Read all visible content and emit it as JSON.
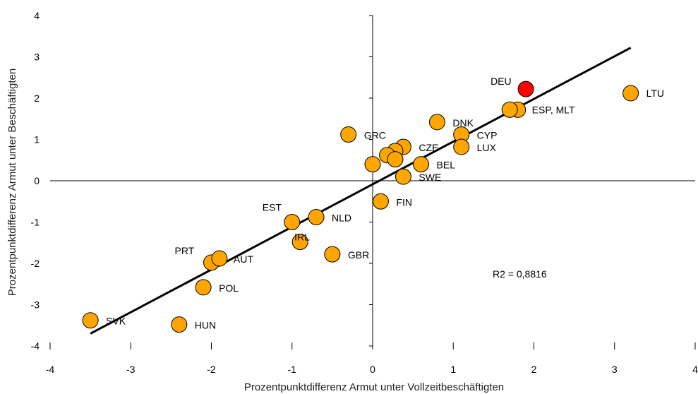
{
  "chart_data": {
    "type": "scatter",
    "xlabel": "Prozentpunktdifferenz Armut unter Vollzeitbeschäftigten",
    "ylabel": "Prozentpunktdifferenz Armut unter Beschäftigten",
    "xlim": [
      -4,
      4
    ],
    "ylim": [
      -4,
      4
    ],
    "xticks": [
      "-4",
      "-3",
      "-2",
      "-1",
      "0",
      "1",
      "2",
      "3",
      "4"
    ],
    "yticks": [
      "4",
      "3",
      "2",
      "1",
      "0",
      "-1",
      "-2",
      "-3",
      "-4"
    ],
    "grid": false,
    "point_color": "#FFA500",
    "highlight_color": "#FF0000",
    "trend_color": "#000000",
    "points": [
      {
        "label": "DEU",
        "x": 1.9,
        "y": 2.22,
        "highlight": true
      },
      {
        "label": "LTU",
        "x": 3.2,
        "y": 2.12
      },
      {
        "label": "ESP, MLT",
        "x": 1.8,
        "y": 1.72
      },
      {
        "label": "",
        "x": 1.7,
        "y": 1.72
      },
      {
        "label": "DNK",
        "x": 0.8,
        "y": 1.42
      },
      {
        "label": "CYP",
        "x": 1.1,
        "y": 1.12
      },
      {
        "label": "LUX",
        "x": 1.1,
        "y": 0.82
      },
      {
        "label": "GRC",
        "x": -0.3,
        "y": 1.12
      },
      {
        "label": "CZE",
        "x": 0.38,
        "y": 0.82
      },
      {
        "label": "",
        "x": 0.28,
        "y": 0.72
      },
      {
        "label": "",
        "x": 0.18,
        "y": 0.62
      },
      {
        "label": "",
        "x": 0.28,
        "y": 0.52
      },
      {
        "label": "",
        "x": 0.0,
        "y": 0.4
      },
      {
        "label": "BEL",
        "x": 0.6,
        "y": 0.4
      },
      {
        "label": "SWE",
        "x": 0.38,
        "y": 0.1
      },
      {
        "label": "FIN",
        "x": 0.1,
        "y": -0.5
      },
      {
        "label": "EST",
        "x": -1.0,
        "y": -1.0
      },
      {
        "label": "NLD",
        "x": -0.7,
        "y": -0.88
      },
      {
        "label": "IRL",
        "x": -0.9,
        "y": -1.48
      },
      {
        "label": "GBR",
        "x": -0.5,
        "y": -1.78
      },
      {
        "label": "PRT",
        "x": -2.0,
        "y": -1.98
      },
      {
        "label": "AUT",
        "x": -1.9,
        "y": -1.88
      },
      {
        "label": "POL",
        "x": -2.1,
        "y": -2.58
      },
      {
        "label": "HUN",
        "x": -2.4,
        "y": -3.48
      },
      {
        "label": "SVK",
        "x": -3.5,
        "y": -3.38
      }
    ],
    "trendline": {
      "x": [
        -3.5,
        3.2
      ],
      "y": [
        -3.7,
        3.22
      ]
    },
    "annotation": "R2 = 0,8816"
  }
}
